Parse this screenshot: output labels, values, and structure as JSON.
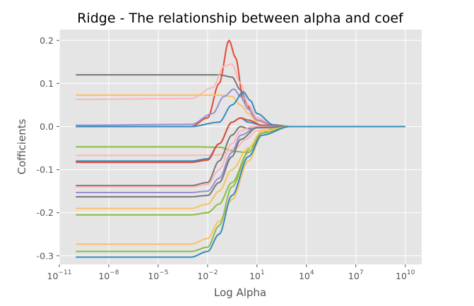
{
  "chart_data": {
    "type": "line",
    "title": "Ridge - The relationship between alpha and coef",
    "xlabel": "Log Alpha",
    "ylabel": "Cofficients",
    "x_scale": "log",
    "xlim": [
      1e-11,
      100000000000.0
    ],
    "ylim": [
      -0.32,
      0.225
    ],
    "grid": true,
    "legend": "none",
    "x_ticks": [
      {
        "base": "10",
        "exp": "−11",
        "value": 1e-11
      },
      {
        "base": "10",
        "exp": "−8",
        "value": 1e-08
      },
      {
        "base": "10",
        "exp": "−5",
        "value": 1e-05
      },
      {
        "base": "10",
        "exp": "−2",
        "value": 0.01
      },
      {
        "base": "10",
        "exp": "1",
        "value": 10
      },
      {
        "base": "10",
        "exp": "4",
        "value": 10000
      },
      {
        "base": "10",
        "exp": "7",
        "value": 10000000
      },
      {
        "base": "10",
        "exp": "10",
        "value": 10000000000
      }
    ],
    "y_ticks": [
      {
        "label": "-0.3",
        "value": -0.3
      },
      {
        "label": "-0.2",
        "value": -0.2
      },
      {
        "label": "-0.1",
        "value": -0.1
      },
      {
        "label": "0.0",
        "value": 0.0
      },
      {
        "label": "0.1",
        "value": 0.1
      },
      {
        "label": "0.2",
        "value": 0.2
      }
    ],
    "alpha_range": [
      1e-10,
      10000000000.0
    ],
    "series": [
      {
        "color": "#e24a33",
        "points": [
          [
            1e-10,
            0.0
          ],
          [
            0.001,
            0.0
          ],
          [
            0.01,
            0.02
          ],
          [
            0.05,
            0.1
          ],
          [
            0.2,
            0.2
          ],
          [
            0.5,
            0.16
          ],
          [
            1.5,
            0.06
          ],
          [
            10,
            0.015
          ],
          [
            100,
            0.002
          ],
          [
            1000,
            0.0
          ],
          [
            10000000000.0,
            0.0
          ]
        ]
      },
      {
        "color": "#777777",
        "points": [
          [
            1e-10,
            0.12
          ],
          [
            0.001,
            0.12
          ],
          [
            0.05,
            0.12
          ],
          [
            0.3,
            0.115
          ],
          [
            1,
            0.085
          ],
          [
            3,
            0.05
          ],
          [
            10,
            0.02
          ],
          [
            100,
            0.003
          ],
          [
            1000,
            0.0
          ],
          [
            10000000000.0,
            0.0
          ]
        ]
      },
      {
        "color": "#ffb5b8",
        "points": [
          [
            1e-10,
            0.063
          ],
          [
            0.001,
            0.065
          ],
          [
            0.02,
            0.09
          ],
          [
            0.1,
            0.14
          ],
          [
            0.3,
            0.145
          ],
          [
            1,
            0.1
          ],
          [
            3,
            0.05
          ],
          [
            10,
            0.02
          ],
          [
            100,
            0.003
          ],
          [
            1000,
            0.0
          ],
          [
            10000000000.0,
            0.0
          ]
        ]
      },
      {
        "color": "#fbc15e",
        "points": [
          [
            1e-10,
            0.073
          ],
          [
            0.001,
            0.073
          ],
          [
            0.05,
            0.073
          ],
          [
            0.3,
            0.07
          ],
          [
            1,
            0.05
          ],
          [
            3,
            0.03
          ],
          [
            10,
            0.012
          ],
          [
            100,
            0.002
          ],
          [
            1000,
            0.0
          ],
          [
            10000000000.0,
            0.0
          ]
        ]
      },
      {
        "color": "#988ed5",
        "points": [
          [
            1e-10,
            0.003
          ],
          [
            0.001,
            0.005
          ],
          [
            0.02,
            0.03
          ],
          [
            0.1,
            0.07
          ],
          [
            0.4,
            0.087
          ],
          [
            1,
            0.07
          ],
          [
            3,
            0.04
          ],
          [
            10,
            0.015
          ],
          [
            100,
            0.002
          ],
          [
            1000,
            0.0
          ],
          [
            10000000000.0,
            0.0
          ]
        ]
      },
      {
        "color": "#348abd",
        "points": [
          [
            1e-10,
            0.0
          ],
          [
            0.001,
            0.0
          ],
          [
            0.05,
            0.01
          ],
          [
            0.3,
            0.05
          ],
          [
            1.5,
            0.08
          ],
          [
            4,
            0.06
          ],
          [
            10,
            0.03
          ],
          [
            100,
            0.004
          ],
          [
            1000,
            0.0
          ],
          [
            10000000000.0,
            0.0
          ]
        ]
      },
      {
        "color": "#8eba42",
        "points": [
          [
            1e-10,
            -0.047
          ],
          [
            0.001,
            -0.047
          ],
          [
            0.05,
            -0.048
          ],
          [
            0.5,
            -0.058
          ],
          [
            2,
            -0.06
          ],
          [
            5,
            -0.045
          ],
          [
            20,
            -0.015
          ],
          [
            100,
            -0.003
          ],
          [
            1000,
            0.0
          ],
          [
            10000000000.0,
            0.0
          ]
        ]
      },
      {
        "color": "#ffb5b8",
        "points": [
          [
            1e-10,
            -0.067
          ],
          [
            0.001,
            -0.067
          ],
          [
            0.05,
            -0.066
          ],
          [
            0.5,
            -0.05
          ],
          [
            2,
            -0.03
          ],
          [
            10,
            -0.01
          ],
          [
            100,
            -0.002
          ],
          [
            1000,
            0.0
          ],
          [
            10000000000.0,
            0.0
          ]
        ]
      },
      {
        "color": "#348abd",
        "points": [
          [
            1e-10,
            -0.08
          ],
          [
            0.001,
            -0.08
          ],
          [
            0.01,
            -0.075
          ],
          [
            0.05,
            -0.04
          ],
          [
            0.3,
            0.01
          ],
          [
            1,
            0.02
          ],
          [
            3,
            0.01
          ],
          [
            20,
            0.003
          ],
          [
            1000,
            0.0
          ],
          [
            10000000000.0,
            0.0
          ]
        ]
      },
      {
        "color": "#e24a33",
        "points": [
          [
            1e-10,
            -0.083
          ],
          [
            0.001,
            -0.083
          ],
          [
            0.01,
            -0.078
          ],
          [
            0.05,
            -0.04
          ],
          [
            0.3,
            0.01
          ],
          [
            1,
            0.02
          ],
          [
            3,
            0.015
          ],
          [
            20,
            0.003
          ],
          [
            1000,
            0.0
          ],
          [
            10000000000.0,
            0.0
          ]
        ]
      },
      {
        "color": "#777777",
        "points": [
          [
            1e-10,
            -0.137
          ],
          [
            0.001,
            -0.137
          ],
          [
            0.01,
            -0.13
          ],
          [
            0.05,
            -0.08
          ],
          [
            0.3,
            -0.02
          ],
          [
            1,
            0.0
          ],
          [
            3,
            -0.005
          ],
          [
            20,
            -0.002
          ],
          [
            1000,
            0.0
          ],
          [
            10000000000.0,
            0.0
          ]
        ]
      },
      {
        "color": "#ffb5b8",
        "points": [
          [
            1e-10,
            -0.14
          ],
          [
            0.001,
            -0.14
          ],
          [
            0.01,
            -0.135
          ],
          [
            0.05,
            -0.1
          ],
          [
            0.3,
            -0.04
          ],
          [
            1,
            -0.01
          ],
          [
            5,
            0.0
          ],
          [
            1000,
            0.0
          ],
          [
            10000000000.0,
            0.0
          ]
        ]
      },
      {
        "color": "#988ed5",
        "points": [
          [
            1e-10,
            -0.153
          ],
          [
            0.001,
            -0.153
          ],
          [
            0.01,
            -0.15
          ],
          [
            0.05,
            -0.12
          ],
          [
            0.3,
            -0.06
          ],
          [
            1,
            -0.02
          ],
          [
            10,
            -0.002
          ],
          [
            1000,
            0.0
          ],
          [
            10000000000.0,
            0.0
          ]
        ]
      },
      {
        "color": "#777777",
        "points": [
          [
            1e-10,
            -0.163
          ],
          [
            0.001,
            -0.163
          ],
          [
            0.01,
            -0.16
          ],
          [
            0.05,
            -0.13
          ],
          [
            0.3,
            -0.07
          ],
          [
            1,
            -0.03
          ],
          [
            10,
            -0.003
          ],
          [
            1000,
            0.0
          ],
          [
            10000000000.0,
            0.0
          ]
        ]
      },
      {
        "color": "#fbc15e",
        "points": [
          [
            1e-10,
            -0.19
          ],
          [
            0.001,
            -0.19
          ],
          [
            0.01,
            -0.18
          ],
          [
            0.05,
            -0.15
          ],
          [
            0.3,
            -0.1
          ],
          [
            3,
            -0.05
          ],
          [
            20,
            -0.01
          ],
          [
            1000,
            0.0
          ],
          [
            10000000000.0,
            0.0
          ]
        ]
      },
      {
        "color": "#8eba42",
        "points": [
          [
            1e-10,
            -0.205
          ],
          [
            0.001,
            -0.205
          ],
          [
            0.01,
            -0.2
          ],
          [
            0.05,
            -0.18
          ],
          [
            0.3,
            -0.13
          ],
          [
            3,
            -0.06
          ],
          [
            20,
            -0.015
          ],
          [
            1000,
            0.0
          ],
          [
            10000000000.0,
            0.0
          ]
        ]
      },
      {
        "color": "#fbc15e",
        "points": [
          [
            1e-10,
            -0.273
          ],
          [
            0.001,
            -0.273
          ],
          [
            0.01,
            -0.26
          ],
          [
            0.05,
            -0.22
          ],
          [
            0.3,
            -0.17
          ],
          [
            3,
            -0.08
          ],
          [
            20,
            -0.02
          ],
          [
            1000,
            0.0
          ],
          [
            10000000000.0,
            0.0
          ]
        ]
      },
      {
        "color": "#8eba42",
        "points": [
          [
            1e-10,
            -0.29
          ],
          [
            0.001,
            -0.29
          ],
          [
            0.01,
            -0.28
          ],
          [
            0.05,
            -0.23
          ],
          [
            0.3,
            -0.14
          ],
          [
            3,
            -0.06
          ],
          [
            20,
            -0.015
          ],
          [
            1000,
            0.0
          ],
          [
            10000000000.0,
            0.0
          ]
        ]
      },
      {
        "color": "#348abd",
        "points": [
          [
            1e-10,
            -0.303
          ],
          [
            0.001,
            -0.303
          ],
          [
            0.01,
            -0.29
          ],
          [
            0.05,
            -0.25
          ],
          [
            0.3,
            -0.16
          ],
          [
            3,
            -0.07
          ],
          [
            20,
            -0.02
          ],
          [
            1000,
            0.0
          ],
          [
            10000000000.0,
            0.0
          ]
        ]
      }
    ]
  }
}
